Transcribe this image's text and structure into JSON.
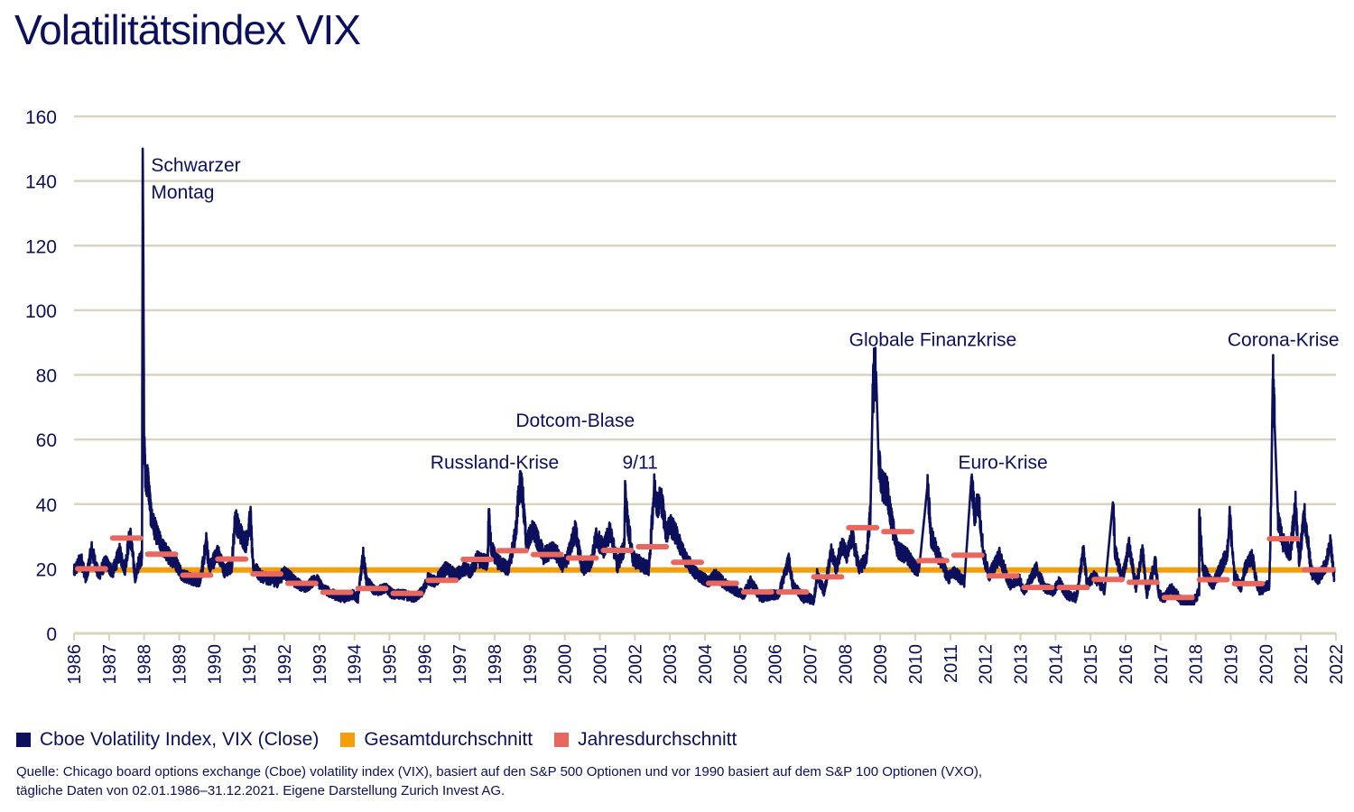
{
  "title": "Volatilitätsindex VIX",
  "colors": {
    "vix": "#0b0f5c",
    "overall_avg": "#f59e0b",
    "annual_avg": "#e8675f",
    "grid": "#d8d4bf",
    "text": "#0b0f5c"
  },
  "legend": [
    {
      "label": "Cboe Volatility Index, VIX (Close)",
      "color": "#0b0f5c"
    },
    {
      "label": "Gesamtdurchschnitt",
      "color": "#f59e0b"
    },
    {
      "label": "Jahresdurchschnitt",
      "color": "#e8675f"
    }
  ],
  "source": {
    "line1": "Quelle: Chicago board options exchange (Cboe) volatility index (VIX), basiert auf den S&P 500 Optionen und vor 1990 basiert auf dem S&P 100 Optionen (VXO),",
    "line2": "tägliche Daten von 02.01.1986–31.12.2021. Eigene Darstellung Zurich Invest AG."
  },
  "chart_data": {
    "type": "line",
    "title": "Volatilitätsindex VIX",
    "xlabel": "",
    "ylabel": "",
    "xlim": [
      1986,
      2022
    ],
    "ylim": [
      0,
      160
    ],
    "yticks": [
      0,
      20,
      40,
      60,
      80,
      100,
      120,
      140,
      160
    ],
    "xticks": [
      1986,
      1987,
      1988,
      1989,
      1990,
      1991,
      1992,
      1993,
      1994,
      1995,
      1996,
      1997,
      1998,
      1999,
      2000,
      2001,
      2002,
      2003,
      2004,
      2005,
      2006,
      2007,
      2008,
      2009,
      2010,
      2011,
      2012,
      2013,
      2014,
      2015,
      2016,
      2017,
      2018,
      2019,
      2020,
      2021,
      2022
    ],
    "grid": true,
    "legend_position": "bottom-left",
    "overall_average": 19.6,
    "annual_averages": [
      {
        "year": 1986,
        "value": 20.0
      },
      {
        "year": 1987,
        "value": 29.5
      },
      {
        "year": 1988,
        "value": 24.5
      },
      {
        "year": 1989,
        "value": 18.0
      },
      {
        "year": 1990,
        "value": 23.0
      },
      {
        "year": 1991,
        "value": 18.4
      },
      {
        "year": 1992,
        "value": 15.5
      },
      {
        "year": 1993,
        "value": 12.7
      },
      {
        "year": 1994,
        "value": 13.9
      },
      {
        "year": 1995,
        "value": 12.4
      },
      {
        "year": 1996,
        "value": 16.4
      },
      {
        "year": 1997,
        "value": 22.9
      },
      {
        "year": 1998,
        "value": 25.6
      },
      {
        "year": 1999,
        "value": 24.4
      },
      {
        "year": 2000,
        "value": 23.3
      },
      {
        "year": 2001,
        "value": 25.7
      },
      {
        "year": 2002,
        "value": 26.8
      },
      {
        "year": 2003,
        "value": 22.0
      },
      {
        "year": 2004,
        "value": 15.5
      },
      {
        "year": 2005,
        "value": 12.8
      },
      {
        "year": 2006,
        "value": 12.8
      },
      {
        "year": 2007,
        "value": 17.5
      },
      {
        "year": 2008,
        "value": 32.7
      },
      {
        "year": 2009,
        "value": 31.5
      },
      {
        "year": 2010,
        "value": 22.5
      },
      {
        "year": 2011,
        "value": 24.2
      },
      {
        "year": 2012,
        "value": 17.8
      },
      {
        "year": 2013,
        "value": 14.2
      },
      {
        "year": 2014,
        "value": 14.2
      },
      {
        "year": 2015,
        "value": 16.7
      },
      {
        "year": 2016,
        "value": 15.8
      },
      {
        "year": 2017,
        "value": 11.1
      },
      {
        "year": 2018,
        "value": 16.6
      },
      {
        "year": 2019,
        "value": 15.4
      },
      {
        "year": 2020,
        "value": 29.3
      },
      {
        "year": 2021,
        "value": 19.7
      }
    ],
    "vix_series_keypoints": [
      [
        1986.0,
        19
      ],
      [
        1986.2,
        23
      ],
      [
        1986.35,
        17
      ],
      [
        1986.5,
        26
      ],
      [
        1986.7,
        18
      ],
      [
        1986.9,
        22
      ],
      [
        1987.1,
        19
      ],
      [
        1987.3,
        25
      ],
      [
        1987.45,
        20
      ],
      [
        1987.6,
        31
      ],
      [
        1987.75,
        17
      ],
      [
        1987.85,
        22
      ],
      [
        1987.94,
        24
      ],
      [
        1987.96,
        150
      ],
      [
        1987.98,
        113
      ],
      [
        1988.0,
        58
      ],
      [
        1988.05,
        45
      ],
      [
        1988.1,
        49
      ],
      [
        1988.2,
        36
      ],
      [
        1988.35,
        31
      ],
      [
        1988.5,
        27
      ],
      [
        1988.7,
        24
      ],
      [
        1988.9,
        22
      ],
      [
        1989.1,
        18
      ],
      [
        1989.3,
        17
      ],
      [
        1989.6,
        16
      ],
      [
        1989.78,
        29
      ],
      [
        1989.85,
        20
      ],
      [
        1989.95,
        22
      ],
      [
        1990.1,
        25
      ],
      [
        1990.3,
        19
      ],
      [
        1990.5,
        21
      ],
      [
        1990.6,
        36
      ],
      [
        1990.7,
        32
      ],
      [
        1990.8,
        30
      ],
      [
        1990.9,
        28
      ],
      [
        1991.04,
        36
      ],
      [
        1991.1,
        21
      ],
      [
        1991.3,
        18
      ],
      [
        1991.5,
        17
      ],
      [
        1991.8,
        16
      ],
      [
        1992.0,
        19
      ],
      [
        1992.3,
        16
      ],
      [
        1992.6,
        14
      ],
      [
        1992.9,
        17
      ],
      [
        1993.1,
        14
      ],
      [
        1993.4,
        12
      ],
      [
        1993.7,
        11
      ],
      [
        1993.95,
        12
      ],
      [
        1994.1,
        11
      ],
      [
        1994.25,
        24
      ],
      [
        1994.35,
        16
      ],
      [
        1994.6,
        13
      ],
      [
        1994.9,
        14
      ],
      [
        1995.1,
        12
      ],
      [
        1995.4,
        12
      ],
      [
        1995.7,
        11
      ],
      [
        1995.95,
        13
      ],
      [
        1996.1,
        17
      ],
      [
        1996.3,
        16
      ],
      [
        1996.6,
        20
      ],
      [
        1996.9,
        18
      ],
      [
        1997.1,
        20
      ],
      [
        1997.3,
        19
      ],
      [
        1997.5,
        23
      ],
      [
        1997.8,
        22
      ],
      [
        1997.83,
        38
      ],
      [
        1997.9,
        26
      ],
      [
        1998.1,
        22
      ],
      [
        1998.4,
        20
      ],
      [
        1998.6,
        31
      ],
      [
        1998.7,
        45
      ],
      [
        1998.78,
        46
      ],
      [
        1998.9,
        28
      ],
      [
        1999.1,
        32
      ],
      [
        1999.4,
        24
      ],
      [
        1999.7,
        26
      ],
      [
        1999.95,
        21
      ],
      [
        2000.1,
        24
      ],
      [
        2000.3,
        32
      ],
      [
        2000.5,
        20
      ],
      [
        2000.75,
        22
      ],
      [
        2000.9,
        30
      ],
      [
        2001.1,
        26
      ],
      [
        2001.3,
        32
      ],
      [
        2001.5,
        21
      ],
      [
        2001.7,
        27
      ],
      [
        2001.72,
        43
      ],
      [
        2001.8,
        34
      ],
      [
        2001.95,
        23
      ],
      [
        2002.1,
        22
      ],
      [
        2002.4,
        20
      ],
      [
        2002.55,
        45
      ],
      [
        2002.65,
        40
      ],
      [
        2002.75,
        42
      ],
      [
        2002.9,
        31
      ],
      [
        2003.0,
        34
      ],
      [
        2003.2,
        30
      ],
      [
        2003.4,
        24
      ],
      [
        2003.7,
        19
      ],
      [
        2003.95,
        17
      ],
      [
        2004.1,
        16
      ],
      [
        2004.3,
        18
      ],
      [
        2004.6,
        15
      ],
      [
        2004.9,
        13
      ],
      [
        2005.1,
        12
      ],
      [
        2005.3,
        16
      ],
      [
        2005.6,
        11
      ],
      [
        2005.9,
        12
      ],
      [
        2006.1,
        12
      ],
      [
        2006.4,
        23
      ],
      [
        2006.5,
        15
      ],
      [
        2006.8,
        11
      ],
      [
        2006.95,
        11
      ],
      [
        2007.1,
        10
      ],
      [
        2007.2,
        18
      ],
      [
        2007.4,
        13
      ],
      [
        2007.6,
        25
      ],
      [
        2007.75,
        20
      ],
      [
        2007.9,
        28
      ],
      [
        2008.05,
        24
      ],
      [
        2008.2,
        30
      ],
      [
        2008.4,
        20
      ],
      [
        2008.6,
        23
      ],
      [
        2008.72,
        37
      ],
      [
        2008.78,
        70
      ],
      [
        2008.82,
        80
      ],
      [
        2008.88,
        81
      ],
      [
        2008.95,
        55
      ],
      [
        2009.05,
        46
      ],
      [
        2009.2,
        44
      ],
      [
        2009.35,
        33
      ],
      [
        2009.5,
        26
      ],
      [
        2009.75,
        24
      ],
      [
        2009.95,
        21
      ],
      [
        2010.1,
        19
      ],
      [
        2010.35,
        46
      ],
      [
        2010.45,
        30
      ],
      [
        2010.7,
        23
      ],
      [
        2010.95,
        17
      ],
      [
        2011.1,
        19
      ],
      [
        2011.4,
        16
      ],
      [
        2011.6,
        48
      ],
      [
        2011.7,
        36
      ],
      [
        2011.8,
        42
      ],
      [
        2011.95,
        24
      ],
      [
        2012.1,
        18
      ],
      [
        2012.4,
        24
      ],
      [
        2012.7,
        15
      ],
      [
        2012.95,
        17
      ],
      [
        2013.1,
        13
      ],
      [
        2013.45,
        20
      ],
      [
        2013.7,
        14
      ],
      [
        2013.95,
        13
      ],
      [
        2014.1,
        16
      ],
      [
        2014.3,
        12
      ],
      [
        2014.6,
        11
      ],
      [
        2014.8,
        26
      ],
      [
        2014.9,
        15
      ],
      [
        2015.1,
        18
      ],
      [
        2015.4,
        13
      ],
      [
        2015.64,
        41
      ],
      [
        2015.7,
        25
      ],
      [
        2015.9,
        17
      ],
      [
        2016.1,
        27
      ],
      [
        2016.3,
        14
      ],
      [
        2016.48,
        26
      ],
      [
        2016.6,
        12
      ],
      [
        2016.85,
        22
      ],
      [
        2016.95,
        12
      ],
      [
        2017.1,
        11
      ],
      [
        2017.3,
        14
      ],
      [
        2017.6,
        10
      ],
      [
        2017.9,
        9
      ],
      [
        2018.1,
        13
      ],
      [
        2018.1,
        37
      ],
      [
        2018.2,
        20
      ],
      [
        2018.5,
        15
      ],
      [
        2018.9,
        25
      ],
      [
        2018.97,
        36
      ],
      [
        2019.1,
        18
      ],
      [
        2019.3,
        14
      ],
      [
        2019.4,
        20
      ],
      [
        2019.6,
        24
      ],
      [
        2019.8,
        13
      ],
      [
        2019.95,
        14
      ],
      [
        2020.1,
        15
      ],
      [
        2020.15,
        40
      ],
      [
        2020.2,
        82
      ],
      [
        2020.25,
        65
      ],
      [
        2020.35,
        35
      ],
      [
        2020.5,
        28
      ],
      [
        2020.7,
        25
      ],
      [
        2020.85,
        40
      ],
      [
        2020.95,
        22
      ],
      [
        2021.1,
        37
      ],
      [
        2021.3,
        19
      ],
      [
        2021.5,
        17
      ],
      [
        2021.7,
        21
      ],
      [
        2021.85,
        28
      ],
      [
        2021.95,
        17
      ]
    ],
    "annotations": [
      {
        "text": "Schwarzer Montag",
        "lines": [
          "Schwarzer",
          "Montag"
        ],
        "year": 1988.2,
        "value": 143
      },
      {
        "text": "Dotcom-Blase",
        "year": 2000.3,
        "value": 64
      },
      {
        "text": "Russland-Krise",
        "year": 1998.0,
        "value": 51
      },
      {
        "text": "9/11",
        "year": 2002.15,
        "value": 51
      },
      {
        "text": "Globale Finanzkrise",
        "year": 2010.5,
        "value": 89
      },
      {
        "text": "Euro-Krise",
        "year": 2012.5,
        "value": 51
      },
      {
        "text": "Corona-Krise",
        "year": 2020.5,
        "value": 89
      }
    ]
  }
}
